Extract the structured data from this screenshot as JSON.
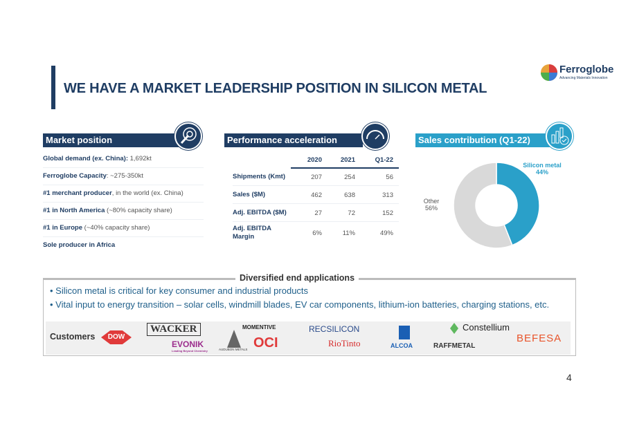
{
  "title": "WE HAVE A MARKET LEADERSHIP POSITION IN SILICON METAL",
  "logo": {
    "name": "Ferroglobe",
    "tagline": "Advancing Materials Innovation"
  },
  "colors": {
    "navy": "#1f3d63",
    "teal": "#2aa0c9",
    "gray": "#d9d9d9"
  },
  "market_position": {
    "header": "Market position",
    "icon": "target-icon",
    "rows": [
      {
        "bold": "Global demand (ex. China):",
        "rest": " 1,692kt"
      },
      {
        "bold": "Ferroglobe Capacity",
        "rest": ": ~275-350kt"
      },
      {
        "bold": "#1 merchant producer",
        "rest": ", in the world (ex. China)"
      },
      {
        "bold": "#1 in North America",
        "rest": " (~80% capacity share)"
      },
      {
        "bold": "#1 in Europe",
        "rest": " (~40% capacity share)"
      },
      {
        "bold": "Sole producer in Africa",
        "rest": ""
      }
    ]
  },
  "performance": {
    "header": "Performance acceleration",
    "icon": "speedometer-icon",
    "columns": [
      "2020",
      "2021",
      "Q1-22"
    ],
    "rows": [
      {
        "label": "Shipments (Kmt)",
        "values": [
          "207",
          "254",
          "56"
        ]
      },
      {
        "label": "Sales ($M)",
        "values": [
          "462",
          "638",
          "313"
        ]
      },
      {
        "label": "Adj. EBITDA ($M)",
        "values": [
          "27",
          "72",
          "152"
        ]
      },
      {
        "label": "Adj. EBITDA Margin",
        "values": [
          "6%",
          "11%",
          "49%"
        ]
      }
    ]
  },
  "sales": {
    "header": "Sales contribution (Q1-22)",
    "icon": "bar-chart-check-icon"
  },
  "chart_data": {
    "type": "pie",
    "donut": true,
    "title": "Sales contribution (Q1-22)",
    "slices": [
      {
        "label": "Silicon metal",
        "value": 44,
        "display": "44%",
        "color": "#2aa0c9"
      },
      {
        "label": "Other",
        "value": 56,
        "display": "56%",
        "color": "#d9d9d9"
      }
    ]
  },
  "diversified": {
    "header": "Diversified end applications",
    "bullets": [
      "Silicon metal is critical for key consumer and industrial products",
      "Vital input to energy transition – solar cells, windmill blades, EV car components, lithium-ion batteries, charging stations, etc."
    ],
    "customers_label": "Customers",
    "customers": [
      "DOW",
      "WACKER",
      "EVONIK",
      "Leading Beyond Chemistry",
      "AUDUBON METALS",
      "MOMENTIVE",
      "OCI",
      "RECSILICON",
      "RioTinto",
      "ALCOA",
      "Constellium",
      "RAFFMETAL",
      "BEFESA"
    ]
  },
  "page_number": "4"
}
